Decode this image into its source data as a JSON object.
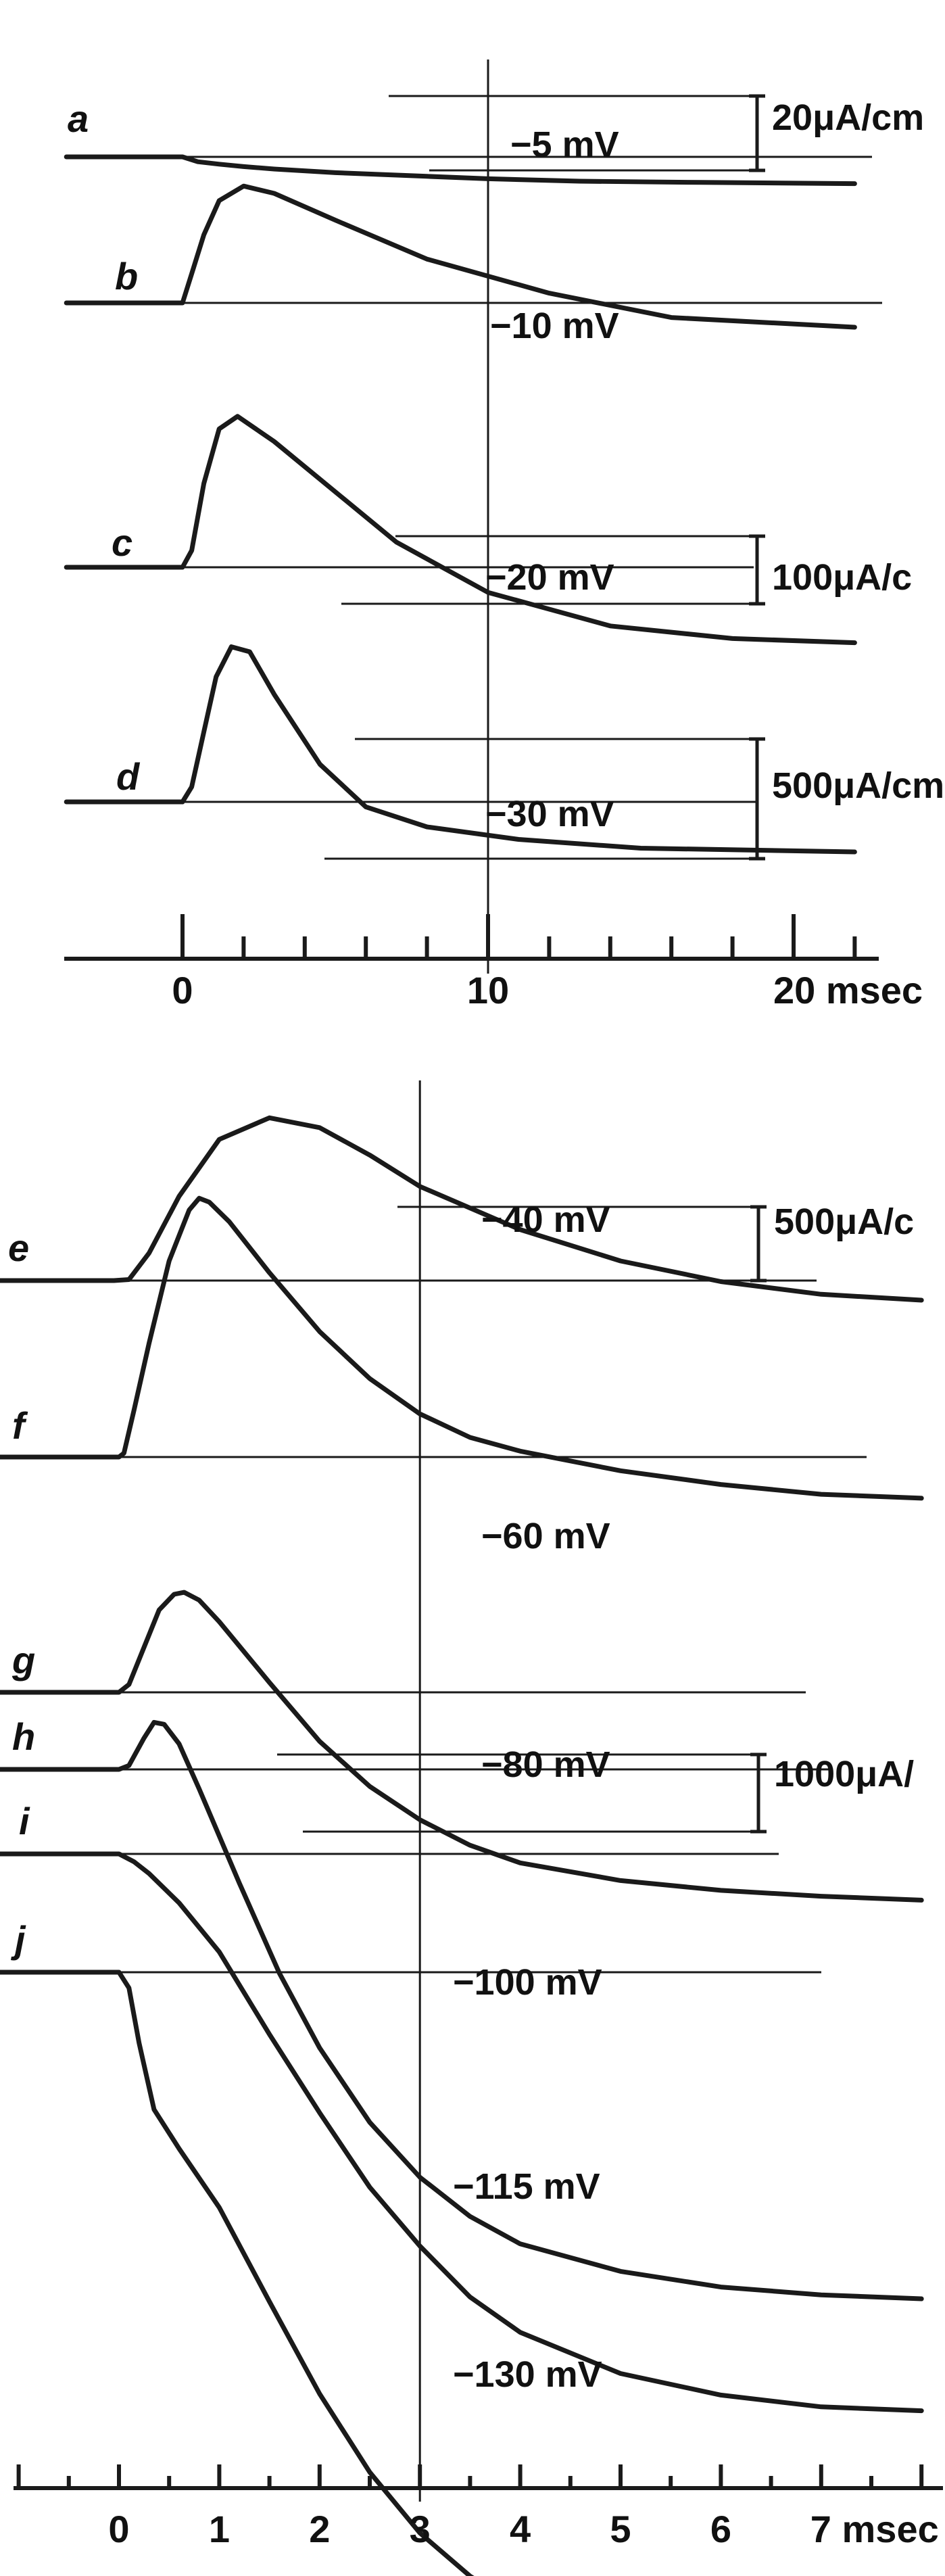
{
  "chart_data": [
    {
      "type": "line",
      "title": "",
      "xlabel": "",
      "ylabel": "",
      "x_unit": "msec",
      "xlim": [
        -3.8,
        23.2
      ],
      "x_ticks": [
        0,
        10,
        20
      ],
      "x_tick_labels": [
        "0",
        "10",
        "20 msec"
      ],
      "minor_tick_step": 2,
      "grid": false,
      "vertical_marker": 10,
      "series": [
        {
          "name": "a",
          "voltage_label": "−5 mV",
          "scale_bar": "20μA/cm",
          "x": [
            -3.8,
            0,
            0.5,
            1.2,
            2,
            3,
            5,
            8,
            10,
            13,
            17,
            22
          ],
          "current": [
            0,
            0,
            -2,
            -3,
            -4,
            -5,
            -6.5,
            -8,
            -9,
            -10,
            -10.5,
            -11
          ]
        },
        {
          "name": "b",
          "voltage_label": "−10 mV",
          "x": [
            -3.8,
            0,
            0.3,
            0.7,
            1.2,
            2,
            3,
            5,
            8,
            12,
            16,
            22
          ],
          "current": [
            0,
            0,
            12,
            28,
            42,
            48,
            45,
            34,
            18,
            4,
            -6,
            -10
          ]
        },
        {
          "name": "c",
          "voltage_label": "−20 mV",
          "scale_bar": "100μA/c",
          "x": [
            -3.8,
            0,
            0.3,
            0.7,
            1.2,
            1.8,
            3,
            5,
            7,
            10,
            14,
            18,
            22
          ],
          "current": [
            0,
            0,
            20,
            100,
            165,
            180,
            150,
            90,
            30,
            -30,
            -70,
            -85,
            -90
          ]
        },
        {
          "name": "d",
          "voltage_label": "−30 mV",
          "scale_bar": "500μA/cm",
          "x": [
            -3.8,
            0,
            0.3,
            0.7,
            1.1,
            1.6,
            2.2,
            3,
            4.5,
            6,
            8,
            11,
            15,
            22
          ],
          "current": [
            0,
            0,
            60,
            280,
            500,
            620,
            600,
            430,
            150,
            -20,
            -100,
            -150,
            -185,
            -200
          ]
        }
      ]
    },
    {
      "type": "line",
      "title": "",
      "xlabel": "",
      "ylabel": "",
      "x_unit": "msec",
      "xlim": [
        -1.2,
        8.3
      ],
      "x_ticks": [
        0,
        1,
        2,
        3,
        4,
        5,
        6,
        7
      ],
      "x_tick_labels": [
        "0",
        "1",
        "2",
        "3",
        "4",
        "5",
        "6",
        "7 msec"
      ],
      "minor_tick_step": 0.5,
      "grid": false,
      "vertical_marker": 3,
      "scale_bars": [
        "500μA/c",
        "1000μA/"
      ],
      "series": [
        {
          "name": "e",
          "voltage_label": "−40 mV",
          "x": [
            -1.2,
            -0.05,
            0.1,
            0.3,
            0.6,
            1.0,
            1.5,
            2.0,
            2.5,
            3.0,
            4.0,
            5.0,
            6.0,
            7.0,
            8.0
          ],
          "current": [
            0,
            0,
            5,
            140,
            430,
            720,
            830,
            780,
            640,
            480,
            260,
            100,
            -5,
            -70,
            -100
          ]
        },
        {
          "name": "f",
          "voltage_label": "−60 mV",
          "x": [
            -1.2,
            0,
            0.05,
            0.15,
            0.3,
            0.5,
            0.7,
            0.8,
            0.9,
            1.1,
            1.5,
            2.0,
            2.5,
            3.0,
            3.5,
            4.0,
            5.0,
            6.0,
            7.0,
            8.0
          ],
          "current": [
            0,
            0,
            20,
            240,
            580,
            1000,
            1260,
            1320,
            1300,
            1200,
            940,
            640,
            400,
            220,
            100,
            30,
            -70,
            -140,
            -190,
            -210
          ]
        },
        {
          "name": "g",
          "voltage_label": "",
          "x": [
            -1.2,
            0,
            0.1,
            0.25,
            0.4,
            0.55,
            0.65,
            0.8,
            1.0,
            1.5,
            2.0,
            2.5,
            3.0,
            3.5,
            4.0,
            5.0,
            6.0,
            7.0,
            8.0
          ],
          "current": [
            0,
            0,
            40,
            230,
            420,
            500,
            510,
            470,
            360,
            50,
            -250,
            -480,
            -650,
            -780,
            -870,
            -960,
            -1010,
            -1040,
            -1060
          ]
        },
        {
          "name": "h",
          "voltage_label": "−80 mV",
          "x": [
            -1.2,
            0,
            0.1,
            0.25,
            0.35,
            0.45,
            0.6,
            0.8,
            1.2,
            1.6,
            2.0,
            2.5,
            3.0,
            3.5,
            4.0,
            5.0,
            6.0,
            7.0,
            8.0
          ],
          "current": [
            0,
            0,
            20,
            160,
            240,
            230,
            130,
            -100,
            -580,
            -1040,
            -1420,
            -1800,
            -2080,
            -2280,
            -2420,
            -2560,
            -2640,
            -2680,
            -2700
          ]
        },
        {
          "name": "i",
          "voltage_label": "−100 mV",
          "x": [
            -1.2,
            0,
            0.15,
            0.3,
            0.6,
            1.0,
            1.5,
            2.0,
            2.5,
            3.0,
            3.5,
            4.0,
            5.0,
            6.0,
            7.0,
            8.0
          ],
          "current": [
            0,
            0,
            -40,
            -100,
            -250,
            -500,
            -920,
            -1320,
            -1700,
            -2000,
            -2260,
            -2440,
            -2650,
            -2760,
            -2820,
            -2840
          ]
        },
        {
          "name": "j",
          "voltage_label": "−115 mV",
          "x": [
            -1.2,
            0,
            0.1,
            0.2,
            0.35,
            0.6,
            1.0,
            1.5,
            2.0,
            2.5,
            3.0,
            3.5,
            4.0,
            5.0,
            6.0,
            7.0,
            8.0
          ],
          "current": [
            0,
            0,
            -80,
            -360,
            -700,
            -900,
            -1200,
            -1680,
            -2150,
            -2550,
            -2860,
            -3080,
            -3240,
            -3420,
            -3500,
            -3540,
            -3560
          ]
        }
      ],
      "extra_labels": [
        "−130 mV"
      ]
    }
  ]
}
